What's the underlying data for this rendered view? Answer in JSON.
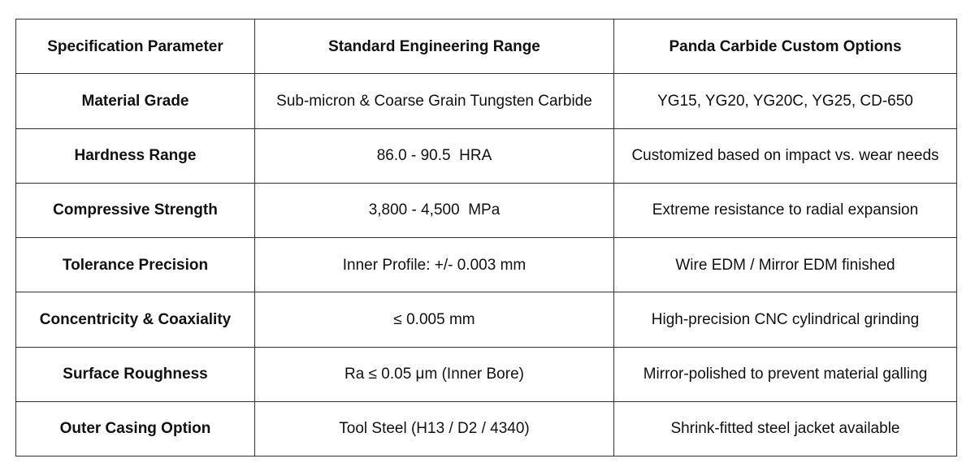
{
  "table": {
    "headers": [
      "Specification Parameter",
      "Standard Engineering Range",
      "Panda Carbide Custom Options"
    ],
    "rows": [
      [
        "Material Grade",
        "Sub-micron & Coarse Grain Tungsten Carbide",
        "YG15, YG20, YG20C, YG25, CD-650"
      ],
      [
        "Hardness Range",
        "86.0 - 90.5  HRA",
        "Customized based on impact vs. wear needs"
      ],
      [
        "Compressive Strength",
        "3,800 - 4,500  MPa",
        "Extreme resistance to radial expansion"
      ],
      [
        "Tolerance Precision",
        "Inner Profile: +/- 0.003 mm",
        "Wire EDM / Mirror EDM finished"
      ],
      [
        "Concentricity & Coaxiality",
        "≤ 0.005 mm",
        "High-precision CNC cylindrical grinding"
      ],
      [
        "Surface Roughness",
        "Ra ≤ 0.05 μm (Inner Bore)",
        "Mirror-polished to prevent material galling"
      ],
      [
        "Outer Casing Option",
        "Tool Steel (H13 / D2 / 4340)",
        "Shrink-fitted steel jacket available"
      ]
    ]
  }
}
